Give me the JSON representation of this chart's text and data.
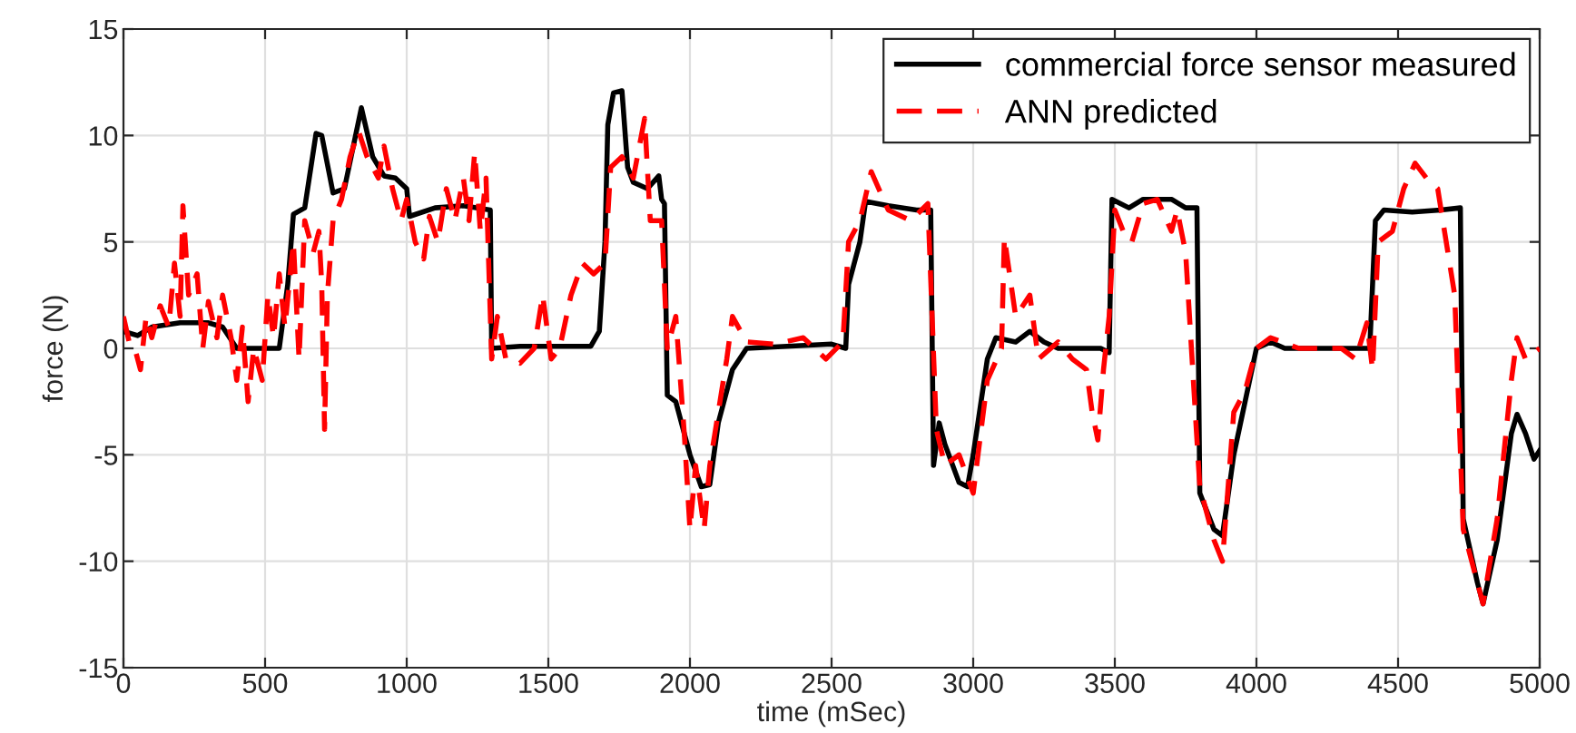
{
  "chart_data": {
    "type": "line",
    "xlabel": "time (mSec)",
    "ylabel": "force (N)",
    "xlim": [
      0,
      5000
    ],
    "ylim": [
      -15,
      15
    ],
    "xticks": [
      0,
      500,
      1000,
      1500,
      2000,
      2500,
      3000,
      3500,
      4000,
      4500,
      5000
    ],
    "yticks": [
      -15,
      -10,
      -5,
      0,
      5,
      10,
      15
    ],
    "grid": true,
    "legend": "top right",
    "series": [
      {
        "name": "commercial force sensor measured",
        "color": "#000000",
        "line_style": "solid",
        "x": [
          0,
          50,
          100,
          200,
          300,
          350,
          400,
          550,
          580,
          600,
          640,
          680,
          700,
          740,
          780,
          840,
          880,
          920,
          960,
          1000,
          1010,
          1100,
          1200,
          1295,
          1300,
          1400,
          1650,
          1680,
          1700,
          1710,
          1730,
          1760,
          1780,
          1800,
          1850,
          1890,
          1900,
          1910,
          1920,
          1950,
          2000,
          2040,
          2070,
          2100,
          2150,
          2200,
          2500,
          2550,
          2560,
          2600,
          2620,
          2700,
          2800,
          2850,
          2860,
          2880,
          2900,
          2950,
          2980,
          3000,
          3050,
          3080,
          3150,
          3200,
          3250,
          3300,
          3450,
          3480,
          3490,
          3550,
          3600,
          3700,
          3750,
          3790,
          3800,
          3850,
          3880,
          3920,
          3960,
          4000,
          4050,
          4100,
          4400,
          4420,
          4450,
          4550,
          4650,
          4720,
          4730,
          4780,
          4800,
          4850,
          4900,
          4920,
          4950,
          4980,
          5000
        ],
        "values": [
          0.8,
          0.6,
          1.0,
          1.2,
          1.2,
          1.0,
          0.0,
          0.0,
          3.0,
          6.3,
          6.6,
          10.1,
          10.0,
          7.3,
          7.5,
          11.3,
          9.0,
          8.1,
          8.0,
          7.5,
          6.2,
          6.6,
          6.7,
          6.5,
          0.0,
          0.1,
          0.1,
          0.8,
          5.0,
          10.5,
          12.0,
          12.1,
          8.5,
          7.8,
          7.5,
          8.1,
          7.0,
          6.8,
          -2.2,
          -2.5,
          -5.0,
          -6.5,
          -6.4,
          -3.5,
          -1.0,
          0.0,
          0.2,
          0.0,
          3.0,
          5.0,
          6.9,
          6.7,
          6.5,
          6.5,
          -5.5,
          -3.5,
          -4.5,
          -6.3,
          -6.5,
          -5.0,
          -0.5,
          0.5,
          0.3,
          0.8,
          0.3,
          0.0,
          0.0,
          -0.2,
          7.0,
          6.6,
          7.0,
          7.0,
          6.6,
          6.6,
          -6.8,
          -8.5,
          -8.8,
          -5.0,
          -2.5,
          0.0,
          0.3,
          0.0,
          0.0,
          6.0,
          6.5,
          6.4,
          6.5,
          6.6,
          -8.0,
          -11.0,
          -12.0,
          -9.0,
          -4.0,
          -3.1,
          -4.0,
          -5.2,
          -4.8
        ]
      },
      {
        "name": "ANN predicted",
        "color": "#ff0000",
        "line_style": "dashed",
        "x": [
          0,
          20,
          40,
          60,
          80,
          100,
          130,
          160,
          180,
          200,
          210,
          230,
          260,
          280,
          300,
          330,
          350,
          380,
          400,
          420,
          440,
          460,
          490,
          510,
          530,
          550,
          570,
          600,
          620,
          640,
          670,
          690,
          700,
          710,
          720,
          740,
          770,
          800,
          830,
          860,
          900,
          920,
          950,
          980,
          1000,
          1030,
          1060,
          1080,
          1110,
          1140,
          1170,
          1200,
          1220,
          1240,
          1260,
          1280,
          1300,
          1320,
          1350,
          1400,
          1450,
          1480,
          1510,
          1540,
          1580,
          1620,
          1660,
          1700,
          1720,
          1760,
          1800,
          1840,
          1860,
          1900,
          1920,
          1950,
          1980,
          2000,
          2020,
          2050,
          2070,
          2100,
          2130,
          2150,
          2200,
          2300,
          2400,
          2480,
          2540,
          2560,
          2600,
          2640,
          2700,
          2780,
          2840,
          2870,
          2900,
          2950,
          3000,
          3050,
          3100,
          3110,
          3150,
          3200,
          3230,
          3300,
          3350,
          3400,
          3420,
          3440,
          3460,
          3480,
          3500,
          3530,
          3560,
          3600,
          3650,
          3700,
          3720,
          3750,
          3800,
          3850,
          3880,
          3920,
          3960,
          4000,
          4050,
          4150,
          4300,
          4350,
          4390,
          4410,
          4430,
          4480,
          4520,
          4560,
          4600,
          4640,
          4700,
          4730,
          4780,
          4800,
          4850,
          4900,
          4920,
          4950,
          5000
        ],
        "values": [
          1.5,
          0.3,
          0.0,
          -1.0,
          1.5,
          0.5,
          2.0,
          1.0,
          4.0,
          1.5,
          6.7,
          2.5,
          3.5,
          0.0,
          2.2,
          0.5,
          2.5,
          0.5,
          -1.5,
          1.0,
          -2.5,
          0.0,
          -1.5,
          2.5,
          0.5,
          3.5,
          1.0,
          5.0,
          -0.5,
          6.0,
          4.5,
          5.5,
          3.0,
          -3.8,
          2.5,
          6.0,
          7.0,
          9.0,
          10.2,
          9.0,
          8.0,
          9.5,
          7.5,
          6.0,
          7.0,
          5.0,
          4.2,
          6.2,
          5.0,
          7.5,
          6.0,
          8.0,
          6.0,
          9.2,
          5.5,
          8.0,
          -0.5,
          1.5,
          -0.5,
          -0.7,
          0.0,
          2.5,
          -0.5,
          0.0,
          2.5,
          4.0,
          3.5,
          4.0,
          8.5,
          9.0,
          8.0,
          10.8,
          6.0,
          6.0,
          0.0,
          1.5,
          -4.0,
          -8.5,
          -5.5,
          -8.5,
          -5.5,
          -3.0,
          -0.5,
          1.5,
          0.3,
          0.2,
          0.5,
          -0.5,
          0.3,
          5.0,
          6.0,
          8.3,
          6.5,
          6.0,
          6.8,
          -3.8,
          -5.5,
          -5.0,
          -6.8,
          -1.5,
          0.0,
          5.2,
          1.5,
          2.5,
          -0.5,
          0.3,
          -0.5,
          -1.0,
          -3.0,
          -4.3,
          -1.0,
          1.5,
          6.5,
          5.5,
          5.0,
          6.8,
          7.0,
          5.5,
          6.5,
          4.5,
          -6.5,
          -9.0,
          -10.0,
          -3.0,
          -2.0,
          0.0,
          0.5,
          0.0,
          0.0,
          -0.5,
          1.2,
          -1.0,
          5.0,
          5.5,
          7.5,
          8.7,
          8.0,
          7.5,
          2.5,
          -8.5,
          -11.0,
          -12.0,
          -8.0,
          -1.5,
          0.5,
          -0.5,
          0.0
        ]
      }
    ]
  }
}
